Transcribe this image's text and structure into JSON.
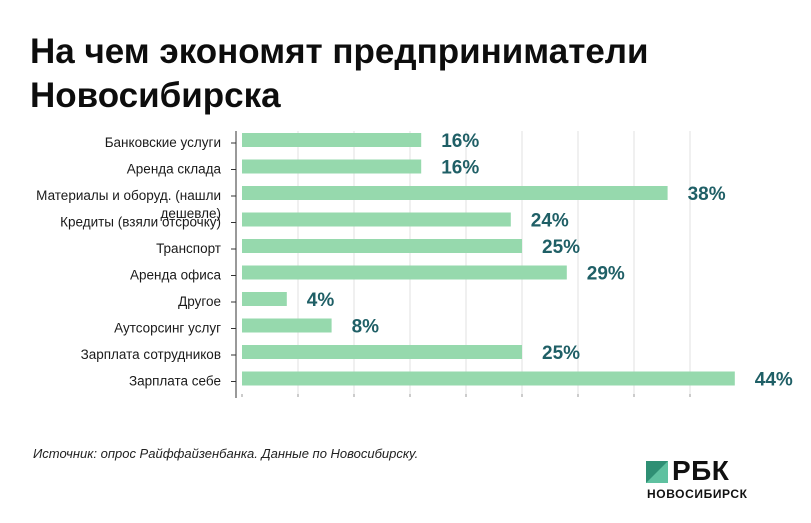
{
  "title": "На чем экономят предприниматели Новосибирска",
  "source": "Источник: опрос Райффайзенбанка. Данные по Новосибирску.",
  "logo": {
    "name": "РБК",
    "region": "НОВОСИБИРСК",
    "icon": "rbc-logo-icon"
  },
  "colors": {
    "bar": "#96d9ad",
    "value_label": "#1f5f66",
    "grid": "#e0e0e0",
    "axis": "#333333"
  },
  "chart_data": {
    "type": "bar",
    "orientation": "horizontal",
    "categories": [
      [
        "Банковские услуги"
      ],
      [
        "Аренда склада"
      ],
      [
        "Материалы и оборуд. (нашли",
        "дешевле)"
      ],
      [
        "Кредиты (взяли отсрочку)"
      ],
      [
        "Транспорт"
      ],
      [
        "Аренда офиса"
      ],
      [
        "Другое"
      ],
      [
        "Аутсорсинг услуг"
      ],
      [
        "Зарплата сотрудников"
      ],
      [
        "Зарплата себе"
      ]
    ],
    "values": [
      16,
      16,
      38,
      24,
      25,
      29,
      4,
      8,
      25,
      44
    ],
    "value_labels": [
      "16%",
      "16%",
      "38%",
      "24%",
      "25%",
      "29%",
      "4%",
      "8%",
      "25%",
      "44%"
    ],
    "xlim": [
      0,
      45
    ],
    "grid": true
  }
}
